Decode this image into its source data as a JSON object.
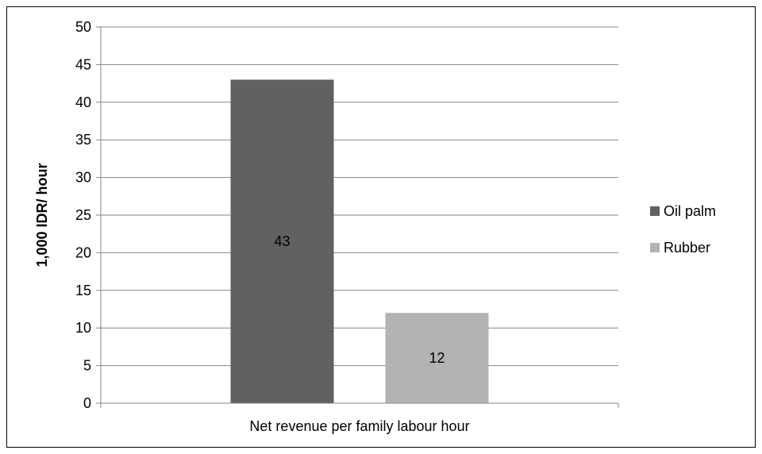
{
  "chart_data": {
    "type": "bar",
    "title": "",
    "xlabel": "",
    "ylabel": "1,000 IDR/ hour",
    "categories": [
      "Net revenue per family labour hour"
    ],
    "series": [
      {
        "name": "Oil palm",
        "values": [
          43
        ],
        "color": "#616161"
      },
      {
        "name": "Rubber",
        "values": [
          12
        ],
        "color": "#b3b3b3"
      }
    ],
    "ylim": [
      0,
      50
    ],
    "yticks": [
      0,
      5,
      10,
      15,
      20,
      25,
      30,
      35,
      40,
      45,
      50
    ],
    "grid": true,
    "legend_position": "right",
    "data_labels": true
  }
}
